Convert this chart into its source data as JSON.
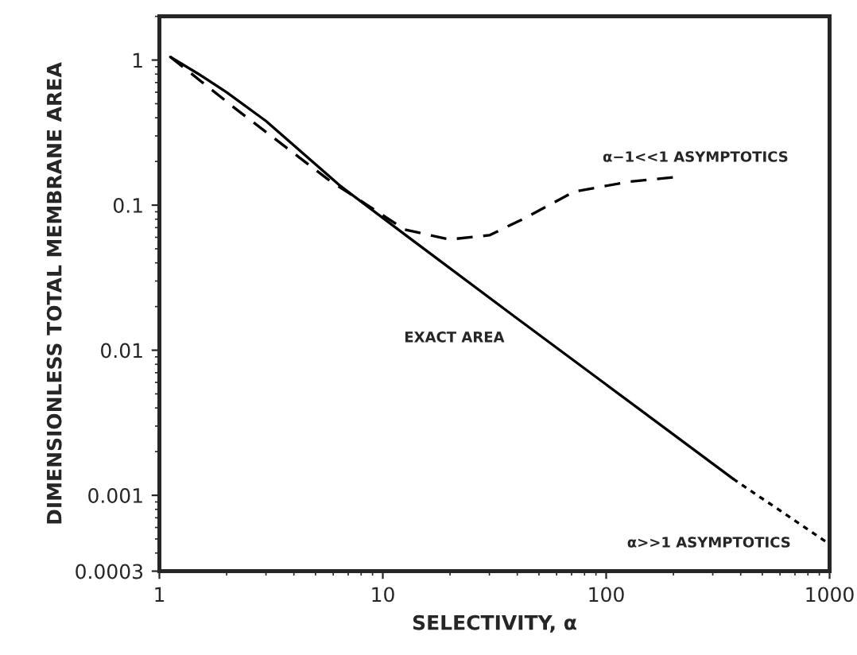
{
  "chart_data": {
    "type": "line",
    "xlabel": "SELECTIVITY, α",
    "ylabel": "DIMENSIONLESS TOTAL MEMBRANE AREA",
    "log": "xy",
    "grid": false,
    "legend": false,
    "xlim": [
      1,
      1000
    ],
    "xticks": [
      1,
      10,
      100,
      1000
    ],
    "ylim": [
      0.0003,
      2
    ],
    "yticks": [
      1,
      0.1,
      0.01,
      0.001,
      0.0003
    ],
    "series": [
      {
        "color": "#000000",
        "line_style": "solid",
        "x": [
          1.12,
          1.5,
          2,
          3,
          6.4,
          12.5,
          39,
          100,
          370
        ],
        "values": [
          1.05,
          0.8,
          0.6,
          0.38,
          0.137,
          0.063,
          0.017,
          0.0058,
          0.0013
        ]
      },
      {
        "color": "#000000",
        "line_style": "dotted",
        "x": [
          370,
          1000
        ],
        "values": [
          0.0013,
          0.00046
        ]
      },
      {
        "color": "#000000",
        "line_style": "dashed",
        "x": [
          1.12,
          2.2,
          5.7,
          12.5,
          19.8,
          30,
          43,
          72,
          127,
          204
        ],
        "values": [
          1.05,
          0.46,
          0.15,
          0.068,
          0.058,
          0.062,
          0.081,
          0.124,
          0.145,
          0.156
        ]
      }
    ],
    "annotations": [
      "EXACT AREA",
      "α−1<<1 ASYMPTOTICS",
      "α>>1 ASYMPTOTICS"
    ]
  }
}
